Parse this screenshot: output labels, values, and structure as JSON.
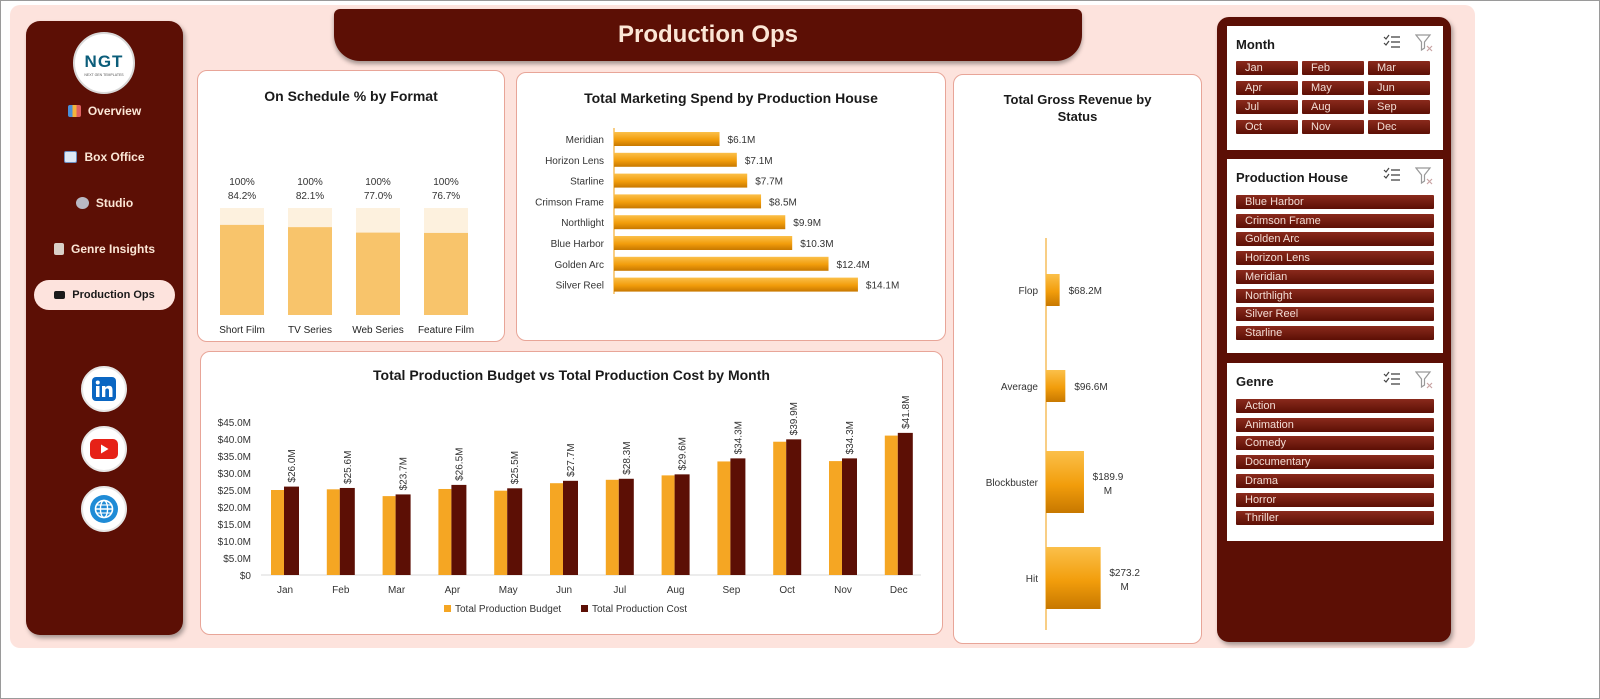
{
  "title": "Production Ops",
  "logo": {
    "text": "NGT",
    "subtext": "NEXT GEN TEMPLATES"
  },
  "nav": [
    {
      "label": "Overview",
      "icon": "bar-chart-icon"
    },
    {
      "label": "Box Office",
      "icon": "trend-chart-icon"
    },
    {
      "label": "Studio",
      "icon": "gear-icon"
    },
    {
      "label": "Genre Insights",
      "icon": "clipboard-icon"
    },
    {
      "label": "Production Ops",
      "icon": "folder-icon",
      "active": true
    }
  ],
  "social": [
    {
      "icon": "linkedin-icon"
    },
    {
      "icon": "youtube-icon"
    },
    {
      "icon": "globe-icon"
    }
  ],
  "colors": {
    "brand": "#5C0F05",
    "background": "#FDE3DD",
    "accent": "#F5A623",
    "bar_light": "#F8C46B"
  },
  "chart_schedule": {
    "title": "On Schedule % by Format",
    "chart_data": {
      "type": "bar",
      "categories": [
        "Short Film",
        "TV Series",
        "Web Series",
        "Feature Film"
      ],
      "series": [
        {
          "values": [
            100,
            100,
            100,
            100
          ],
          "labels": [
            "100%",
            "100%",
            "100%",
            "100%"
          ]
        },
        {
          "values": [
            84.2,
            82.1,
            77.0,
            76.7
          ],
          "labels": [
            "84.2%",
            "82.1%",
            "77.0%",
            "76.7%"
          ]
        }
      ],
      "ylim": [
        0,
        100
      ]
    }
  },
  "chart_marketing": {
    "title": "Total Marketing Spend by Production House",
    "chart_data": {
      "type": "bar",
      "orientation": "horizontal",
      "categories": [
        "Meridian",
        "Horizon Lens",
        "Starline",
        "Crimson Frame",
        "Northlight",
        "Blue Harbor",
        "Golden Arc",
        "Silver Reel"
      ],
      "values": [
        6.1,
        7.1,
        7.7,
        8.5,
        9.9,
        10.3,
        12.4,
        14.1
      ],
      "labels": [
        "$6.1M",
        "$7.1M",
        "$7.7M",
        "$8.5M",
        "$9.9M",
        "$10.3M",
        "$12.4M",
        "$14.1M"
      ],
      "xlim": [
        0,
        15
      ]
    }
  },
  "chart_revenue": {
    "title": "Total Gross Revenue by Status",
    "chart_data": {
      "type": "bar",
      "orientation": "horizontal",
      "categories": [
        "Flop",
        "Average",
        "Blockbuster",
        "Hit"
      ],
      "values": [
        68.2,
        96.6,
        189.9,
        273.2
      ],
      "labels": [
        "$68.2M",
        "$96.6M",
        "$189.9 M",
        "$273.2 M"
      ],
      "xlim": [
        0,
        300
      ]
    }
  },
  "chart_budget": {
    "title": "Total Production Budget vs Total Production Cost by Month",
    "chart_data": {
      "type": "bar",
      "categories": [
        "Jan",
        "Feb",
        "Mar",
        "Apr",
        "May",
        "Jun",
        "Jul",
        "Aug",
        "Sep",
        "Oct",
        "Nov",
        "Dec"
      ],
      "series": [
        {
          "name": "Total Production Budget",
          "values": [
            25.0,
            25.2,
            23.2,
            25.3,
            24.8,
            27.0,
            28.0,
            29.3,
            33.4,
            39.2,
            33.5,
            41.0
          ]
        },
        {
          "name": "Total Production Cost",
          "values": [
            26.0,
            25.6,
            23.7,
            26.5,
            25.5,
            27.7,
            28.3,
            29.6,
            34.3,
            39.9,
            34.3,
            41.8
          ],
          "labels": [
            "$26.0M",
            "$25.6M",
            "$23.7M",
            "$26.5M",
            "$25.5M",
            "$27.7M",
            "$28.3M",
            "$29.6M",
            "$34.3M",
            "$39.9M",
            "$34.3M",
            "$41.8M"
          ]
        }
      ],
      "yticks": [
        "$0",
        "$5.0M",
        "$10.0M",
        "$15.0M",
        "$20.0M",
        "$25.0M",
        "$30.0M",
        "$35.0M",
        "$40.0M",
        "$45.0M"
      ],
      "ylim": [
        0,
        45
      ],
      "legend": "bottom"
    }
  },
  "slicers": [
    {
      "title": "Month",
      "layout": "grid",
      "items": [
        "Jan",
        "Feb",
        "Mar",
        "Apr",
        "May",
        "Jun",
        "Jul",
        "Aug",
        "Sep",
        "Oct",
        "Nov",
        "Dec"
      ]
    },
    {
      "title": "Production House",
      "layout": "list",
      "items": [
        "Blue Harbor",
        "Crimson Frame",
        "Golden Arc",
        "Horizon Lens",
        "Meridian",
        "Northlight",
        "Silver Reel",
        "Starline"
      ]
    },
    {
      "title": "Genre",
      "layout": "list",
      "items": [
        "Action",
        "Animation",
        "Comedy",
        "Documentary",
        "Drama",
        "Horror",
        "Thriller"
      ]
    }
  ]
}
